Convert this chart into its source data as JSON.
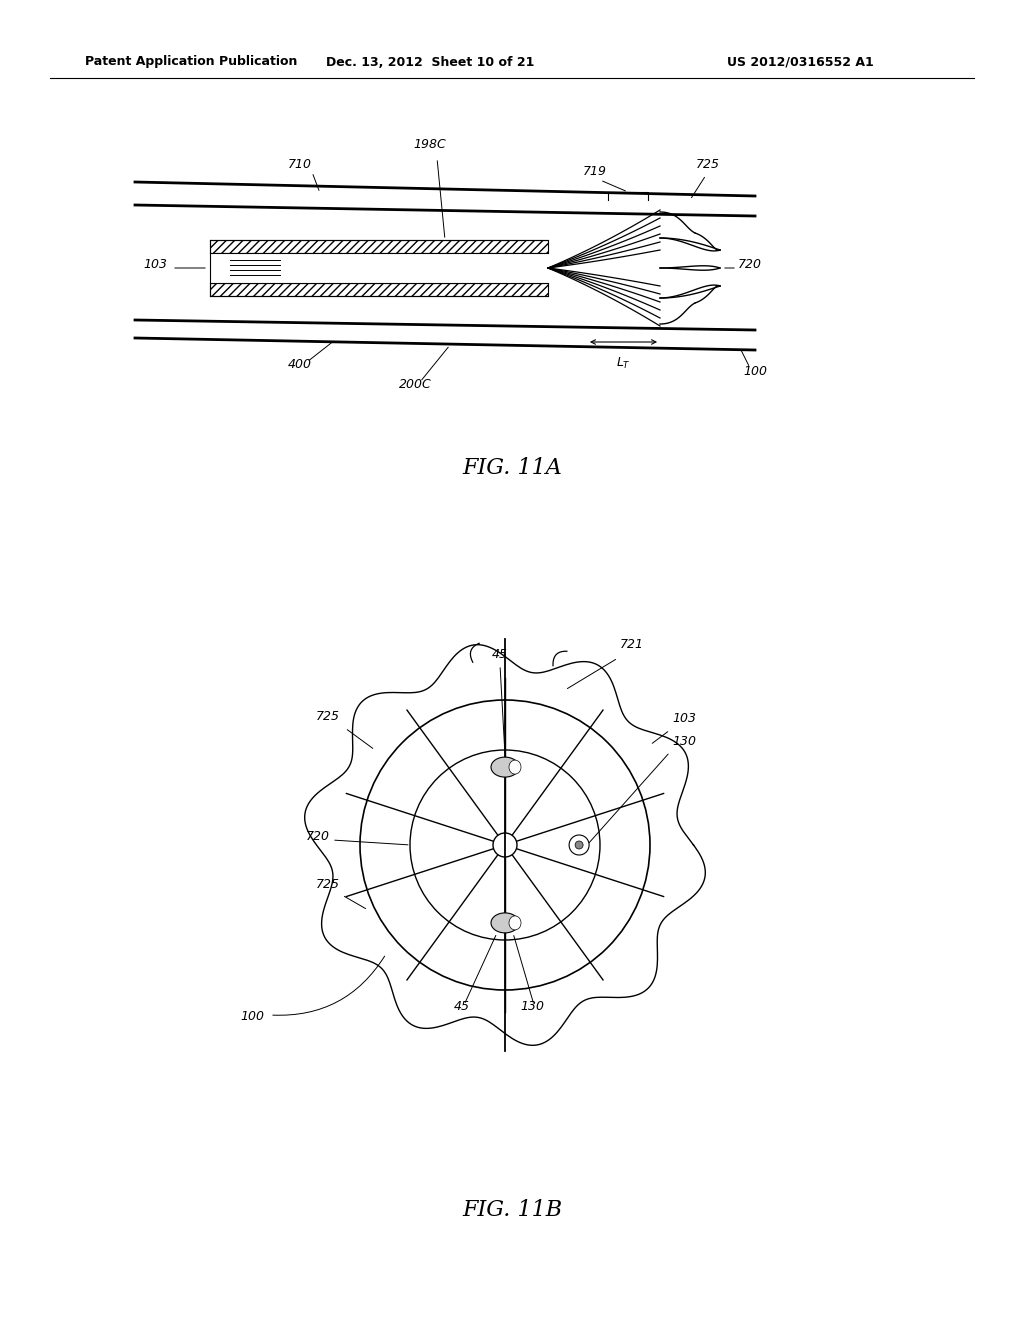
{
  "bg_color": "#ffffff",
  "header_text": "Patent Application Publication",
  "header_date": "Dec. 13, 2012  Sheet 10 of 21",
  "header_patent": "US 2012/0316552 A1",
  "fig_a_label": "FIG. 11A",
  "fig_b_label": "FIG. 11B"
}
